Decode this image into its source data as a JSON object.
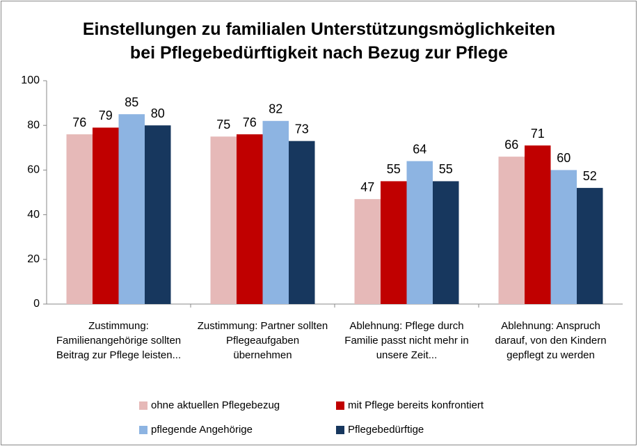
{
  "chart_data": {
    "type": "bar",
    "title": [
      "Einstellungen zu familialen Unterstützungsmöglichkeiten",
      "bei Pflegebedürftigkeit nach Bezug zur Pflege"
    ],
    "categories": [
      "Zustimmung: Familienangehörige sollten Beitrag zur Pflege leisten...",
      "Zustimmung: Partner sollten Pflegeaufgaben übernehmen",
      "Ablehnung:  Pflege durch Familie passt nicht mehr in unsere Zeit...",
      "Ablehnung: Anspruch darauf, von den Kindern gepflegt zu werden"
    ],
    "series": [
      {
        "name": "ohne aktuellen Pflegebezug",
        "color": "#e6b9b8",
        "values": [
          76,
          75,
          47,
          66
        ]
      },
      {
        "name": "mit Pflege bereits konfrontiert",
        "color": "#c00000",
        "values": [
          79,
          76,
          55,
          71
        ]
      },
      {
        "name": "pflegende Angehörige",
        "color": "#8db4e2",
        "values": [
          85,
          82,
          64,
          60
        ]
      },
      {
        "name": "Pflegebedürftige",
        "color": "#17375e",
        "values": [
          80,
          73,
          55,
          52
        ]
      }
    ],
    "ylim": [
      0,
      100
    ],
    "yticks": [
      0,
      20,
      40,
      60,
      80,
      100
    ],
    "grid": false,
    "legend": "bottom"
  }
}
